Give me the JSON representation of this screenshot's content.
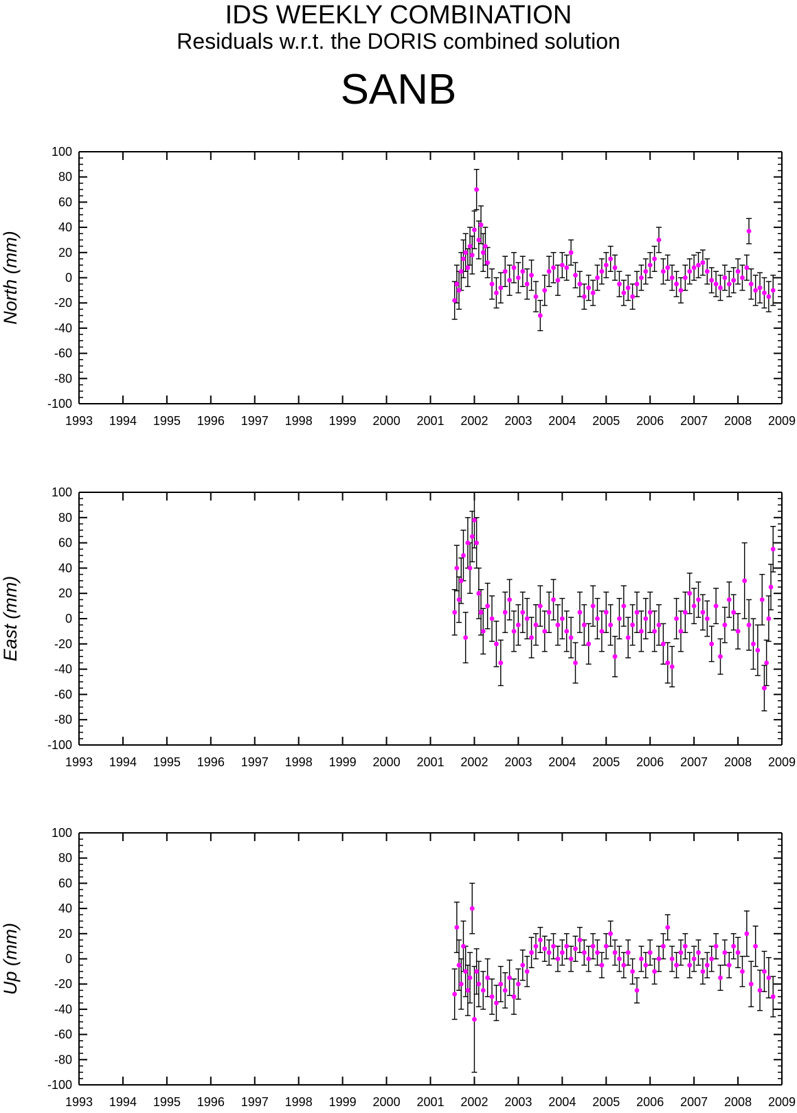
{
  "header": {
    "title": "IDS WEEKLY COMBINATION",
    "subtitle": "Residuals w.r.t. the DORIS combined solution",
    "station": "SANB"
  },
  "style": {
    "point_color": "#ff00ff",
    "errorbar_color": "#000000",
    "axis_color": "#000000"
  },
  "chart_data": [
    {
      "type": "scatter",
      "panel": "north",
      "ylabel": "North (mm)",
      "xlim": [
        1993,
        2009
      ],
      "ylim": [
        -100,
        100
      ],
      "xticks": [
        1993,
        1994,
        1995,
        1996,
        1997,
        1998,
        1999,
        2000,
        2001,
        2002,
        2003,
        2004,
        2005,
        2006,
        2007,
        2008,
        2009
      ],
      "yticks": [
        100,
        80,
        60,
        40,
        20,
        0,
        -20,
        -40,
        -60,
        -80,
        -100
      ],
      "series": [
        {
          "x": [
            2001.55,
            2001.6,
            2001.65,
            2001.7,
            2001.75,
            2001.8,
            2001.85,
            2001.9,
            2001.95,
            2002.0,
            2002.05,
            2002.1,
            2002.15,
            2002.2,
            2002.25,
            2002.3,
            2002.4,
            2002.5,
            2002.6,
            2002.7,
            2002.8,
            2002.9,
            2003.0,
            2003.1,
            2003.2,
            2003.3,
            2003.4,
            2003.5,
            2003.6,
            2003.7,
            2003.8,
            2003.9,
            2004.0,
            2004.1,
            2004.2,
            2004.3,
            2004.4,
            2004.5,
            2004.6,
            2004.7,
            2004.8,
            2004.9,
            2005.0,
            2005.1,
            2005.2,
            2005.3,
            2005.4,
            2005.5,
            2005.6,
            2005.7,
            2005.8,
            2005.9,
            2006.0,
            2006.1,
            2006.2,
            2006.3,
            2006.4,
            2006.5,
            2006.6,
            2006.7,
            2006.8,
            2006.9,
            2007.0,
            2007.1,
            2007.2,
            2007.3,
            2007.4,
            2007.5,
            2007.6,
            2007.7,
            2007.8,
            2007.9,
            2008.0,
            2008.1,
            2008.2,
            2008.25,
            2008.3,
            2008.4,
            2008.5,
            2008.6,
            2008.7,
            2008.8
          ],
          "y": [
            -18,
            -5,
            -10,
            5,
            15,
            20,
            8,
            25,
            18,
            38,
            70,
            30,
            42,
            20,
            25,
            12,
            -5,
            -12,
            -8,
            5,
            -2,
            8,
            0,
            5,
            -5,
            2,
            -15,
            -30,
            -10,
            5,
            8,
            -2,
            10,
            8,
            20,
            2,
            -5,
            -15,
            -8,
            -12,
            0,
            5,
            10,
            15,
            8,
            -5,
            -12,
            -8,
            -15,
            -5,
            0,
            5,
            10,
            15,
            30,
            5,
            8,
            0,
            -5,
            -10,
            0,
            5,
            8,
            10,
            12,
            5,
            -2,
            -5,
            -8,
            0,
            -5,
            -2,
            5,
            0,
            8,
            37,
            -5,
            -10,
            -8,
            -12,
            -15,
            -10
          ],
          "err": [
            15,
            15,
            15,
            15,
            15,
            15,
            15,
            15,
            15,
            15,
            16,
            15,
            15,
            15,
            15,
            12,
            12,
            12,
            12,
            12,
            12,
            12,
            12,
            12,
            12,
            12,
            12,
            12,
            12,
            12,
            12,
            12,
            10,
            10,
            10,
            10,
            10,
            10,
            10,
            10,
            10,
            10,
            10,
            10,
            10,
            10,
            10,
            10,
            10,
            10,
            10,
            10,
            10,
            10,
            10,
            10,
            10,
            10,
            10,
            10,
            10,
            10,
            10,
            10,
            10,
            10,
            10,
            10,
            10,
            10,
            10,
            10,
            10,
            10,
            10,
            10,
            12,
            12,
            12,
            12,
            12,
            12
          ]
        }
      ]
    },
    {
      "type": "scatter",
      "panel": "east",
      "ylabel": "East (mm)",
      "xlim": [
        1993,
        2009
      ],
      "ylim": [
        -100,
        100
      ],
      "xticks": [
        1993,
        1994,
        1995,
        1996,
        1997,
        1998,
        1999,
        2000,
        2001,
        2002,
        2003,
        2004,
        2005,
        2006,
        2007,
        2008,
        2009
      ],
      "yticks": [
        100,
        80,
        60,
        40,
        20,
        0,
        -20,
        -40,
        -60,
        -80,
        -100
      ],
      "series": [
        {
          "x": [
            2001.55,
            2001.6,
            2001.65,
            2001.7,
            2001.75,
            2001.8,
            2001.85,
            2001.9,
            2001.95,
            2002.0,
            2002.05,
            2002.1,
            2002.15,
            2002.2,
            2002.3,
            2002.4,
            2002.5,
            2002.6,
            2002.7,
            2002.8,
            2002.9,
            2003.0,
            2003.1,
            2003.2,
            2003.3,
            2003.4,
            2003.5,
            2003.6,
            2003.7,
            2003.8,
            2003.9,
            2004.0,
            2004.1,
            2004.2,
            2004.3,
            2004.4,
            2004.5,
            2004.6,
            2004.7,
            2004.8,
            2004.9,
            2005.0,
            2005.1,
            2005.2,
            2005.3,
            2005.4,
            2005.5,
            2005.6,
            2005.7,
            2005.8,
            2005.9,
            2006.0,
            2006.1,
            2006.2,
            2006.3,
            2006.4,
            2006.5,
            2006.6,
            2006.7,
            2006.8,
            2006.9,
            2007.0,
            2007.1,
            2007.2,
            2007.3,
            2007.4,
            2007.5,
            2007.6,
            2007.7,
            2007.8,
            2007.9,
            2008.0,
            2008.15,
            2008.25,
            2008.35,
            2008.45,
            2008.55,
            2008.6,
            2008.65,
            2008.7,
            2008.75,
            2008.8
          ],
          "y": [
            5,
            40,
            15,
            30,
            50,
            -15,
            60,
            40,
            65,
            78,
            60,
            20,
            5,
            -10,
            10,
            0,
            -20,
            -35,
            5,
            15,
            -10,
            -5,
            5,
            0,
            -15,
            -5,
            10,
            -10,
            5,
            15,
            -5,
            0,
            -10,
            -15,
            -35,
            5,
            -5,
            -20,
            10,
            0,
            -10,
            5,
            -5,
            -30,
            0,
            10,
            -15,
            -5,
            5,
            -10,
            0,
            5,
            -10,
            -5,
            -20,
            -35,
            -38,
            0,
            -10,
            5,
            20,
            10,
            15,
            5,
            0,
            -20,
            10,
            -30,
            -5,
            15,
            5,
            -10,
            30,
            -5,
            -20,
            -25,
            15,
            -55,
            -35,
            0,
            25,
            55
          ],
          "err": [
            18,
            18,
            18,
            18,
            20,
            20,
            20,
            20,
            20,
            22,
            20,
            20,
            18,
            18,
            18,
            18,
            18,
            18,
            16,
            16,
            16,
            16,
            16,
            16,
            16,
            16,
            16,
            16,
            16,
            16,
            16,
            16,
            16,
            16,
            16,
            16,
            16,
            16,
            16,
            16,
            16,
            16,
            16,
            16,
            16,
            16,
            16,
            16,
            16,
            16,
            16,
            16,
            16,
            16,
            16,
            16,
            16,
            16,
            16,
            16,
            16,
            14,
            14,
            14,
            14,
            14,
            14,
            14,
            14,
            14,
            14,
            14,
            30,
            20,
            20,
            20,
            20,
            18,
            18,
            18,
            18,
            18
          ]
        }
      ]
    },
    {
      "type": "scatter",
      "panel": "up",
      "ylabel": "Up (mm)",
      "xlim": [
        1993,
        2009
      ],
      "ylim": [
        -100,
        100
      ],
      "xticks": [
        1993,
        1994,
        1995,
        1996,
        1997,
        1998,
        1999,
        2000,
        2001,
        2002,
        2003,
        2004,
        2005,
        2006,
        2007,
        2008,
        2009
      ],
      "yticks": [
        100,
        80,
        60,
        40,
        20,
        0,
        -20,
        -40,
        -60,
        -80,
        -100
      ],
      "series": [
        {
          "x": [
            2001.55,
            2001.6,
            2001.65,
            2001.7,
            2001.75,
            2001.8,
            2001.85,
            2001.9,
            2001.95,
            2002.0,
            2002.05,
            2002.1,
            2002.2,
            2002.3,
            2002.4,
            2002.5,
            2002.6,
            2002.7,
            2002.8,
            2002.9,
            2003.0,
            2003.1,
            2003.2,
            2003.3,
            2003.4,
            2003.5,
            2003.6,
            2003.7,
            2003.8,
            2003.9,
            2004.0,
            2004.1,
            2004.2,
            2004.3,
            2004.4,
            2004.5,
            2004.6,
            2004.7,
            2004.8,
            2004.9,
            2005.0,
            2005.1,
            2005.2,
            2005.3,
            2005.4,
            2005.5,
            2005.6,
            2005.7,
            2005.8,
            2005.9,
            2006.0,
            2006.1,
            2006.2,
            2006.3,
            2006.4,
            2006.5,
            2006.6,
            2006.7,
            2006.8,
            2006.9,
            2007.0,
            2007.1,
            2007.2,
            2007.3,
            2007.4,
            2007.5,
            2007.6,
            2007.7,
            2007.8,
            2007.9,
            2008.0,
            2008.1,
            2008.2,
            2008.3,
            2008.4,
            2008.5,
            2008.6,
            2008.7,
            2008.8
          ],
          "y": [
            -28,
            25,
            -5,
            -20,
            10,
            -10,
            -25,
            -15,
            40,
            -48,
            -10,
            -20,
            -25,
            -15,
            -30,
            -35,
            -20,
            -25,
            -15,
            -30,
            -20,
            -5,
            -10,
            5,
            10,
            15,
            8,
            5,
            10,
            0,
            5,
            10,
            0,
            8,
            15,
            5,
            0,
            10,
            5,
            -5,
            10,
            20,
            5,
            0,
            -5,
            5,
            -10,
            -25,
            0,
            -5,
            5,
            -10,
            0,
            10,
            25,
            0,
            -5,
            5,
            10,
            -5,
            0,
            5,
            -10,
            -5,
            0,
            10,
            -15,
            5,
            -5,
            10,
            5,
            -10,
            20,
            -20,
            10,
            -25,
            -10,
            -15,
            -30
          ],
          "err": [
            20,
            20,
            20,
            20,
            20,
            20,
            20,
            20,
            20,
            42,
            18,
            18,
            15,
            15,
            14,
            14,
            14,
            14,
            14,
            14,
            12,
            12,
            12,
            12,
            10,
            10,
            10,
            10,
            10,
            10,
            10,
            10,
            10,
            10,
            10,
            10,
            10,
            10,
            10,
            10,
            10,
            10,
            10,
            10,
            10,
            10,
            10,
            10,
            10,
            10,
            10,
            10,
            10,
            10,
            10,
            10,
            10,
            10,
            10,
            10,
            10,
            10,
            10,
            10,
            10,
            10,
            10,
            10,
            10,
            10,
            12,
            12,
            18,
            18,
            16,
            16,
            16,
            16,
            16
          ]
        }
      ]
    }
  ]
}
